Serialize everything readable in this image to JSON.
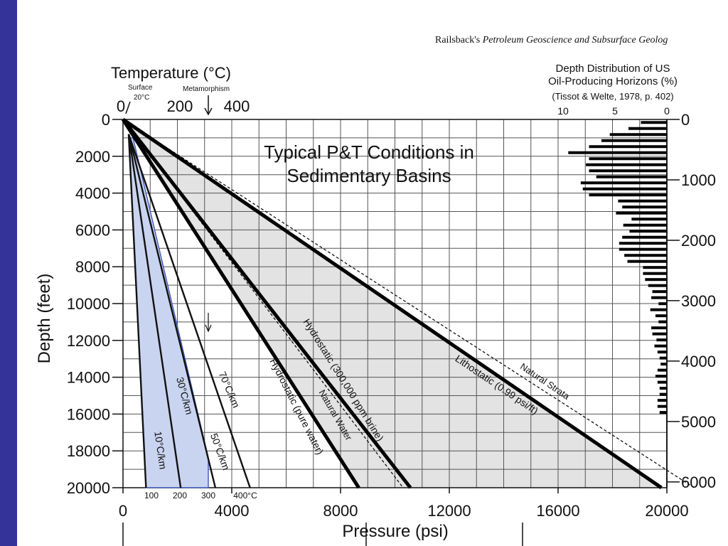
{
  "slide": {
    "sidebar_color": "#33339a",
    "credit_prefix": "Railsback's ",
    "credit_title": "Petroleum Geoscience and Subsurface Geolog"
  },
  "chart_data": {
    "type": "line",
    "title_lines": [
      "Typical P&T Conditions in",
      "Sedimentary Basins"
    ],
    "xlabel": "Pressure (psi)",
    "ylabel": "Depth (feet)",
    "xlim": [
      0,
      20000
    ],
    "ylim": [
      0,
      20000
    ],
    "y_inverted": true,
    "grid": true,
    "x_ticks": [
      0,
      4000,
      8000,
      12000,
      16000,
      20000
    ],
    "x_tick_labels": [
      "0",
      "4000",
      "8000",
      "12000",
      "16000",
      "20000"
    ],
    "y_ticks": [
      0,
      2000,
      4000,
      6000,
      8000,
      10000,
      12000,
      14000,
      16000,
      18000,
      20000
    ],
    "y_tick_labels": [
      "0",
      "2000",
      "4000",
      "6000",
      "8000",
      "10000",
      "12000",
      "14000",
      "16000",
      "18000",
      "20000"
    ],
    "temperature_axis": {
      "label": "Temperature (°C)",
      "tick_values": [
        0,
        200,
        400
      ],
      "tick_labels": [
        "0",
        "200",
        "400"
      ],
      "surface_label": "Surface",
      "surface_temp_label": "20°C",
      "surface_temp_value": 20,
      "metamorphism_label": "Metamorphism",
      "metamorphism_temp_value": 300,
      "bottom_tick_values": [
        100,
        200,
        300,
        400
      ],
      "bottom_tick_labels": [
        "100",
        "200",
        "300",
        "400°C"
      ]
    },
    "pressure_series": [
      {
        "name": "Hydrostatic (pure water)",
        "points": [
          [
            0,
            0
          ],
          [
            8670,
            20000
          ]
        ],
        "style": "thick"
      },
      {
        "name": "Hydrostatic (300,000 ppm brine)",
        "points": [
          [
            0,
            0
          ],
          [
            10570,
            20000
          ]
        ],
        "style": "thick"
      },
      {
        "name": "Lithostatic (0.99 psi/ft)",
        "points": [
          [
            0,
            0
          ],
          [
            19800,
            20000
          ]
        ],
        "style": "thick"
      },
      {
        "name": "Natural Water",
        "points": [
          [
            0,
            0
          ],
          [
            10300,
            20000
          ]
        ],
        "style": "dashed"
      },
      {
        "name": "Natural Strata",
        "points": [
          [
            0,
            0
          ],
          [
            21000,
            20000
          ]
        ],
        "style": "dashed"
      }
    ],
    "pressure_labels": {
      "hydro_pure": "Hydrostatic (pure water)",
      "hydro_brine": "Hydrostatic (300,000 ppm brine)",
      "litho": "Lithostatic (0.99 psi/ft)",
      "nat_water": "Natural Water",
      "nat_strata": "Natural Strata"
    },
    "geotherms": [
      {
        "name": "10°C/km",
        "surface_temp": 20,
        "gradient_c_per_km": 10
      },
      {
        "name": "30°C/km",
        "surface_temp": 20,
        "gradient_c_per_km": 30
      },
      {
        "name": "50°C/km",
        "surface_temp": 20,
        "gradient_c_per_km": 50
      },
      {
        "name": "70°C/km",
        "surface_temp": 20,
        "gradient_c_per_km": 70
      }
    ],
    "geotherm_labels": {
      "g10": "10°C/km",
      "g30": "30°C/km",
      "g50": "50°C/km",
      "g70": "70°C/km"
    },
    "typical_range_color": "#c9d4f0",
    "envelope_color": "#e3e3e3",
    "distribution": {
      "title_lines": [
        "Depth Distribution of US",
        "Oil-Producing Horizons (%)"
      ],
      "source": "(Tissot & Welte, 1978, p. 402)",
      "x_ticks": [
        10,
        5,
        0
      ],
      "x_tick_labels": [
        "10",
        "5",
        "0"
      ],
      "depth_axis_unit": "m",
      "depth_ticks": [
        0,
        1000,
        2000,
        3000,
        4000,
        5000,
        6000
      ],
      "depth_tick_labels": [
        "0",
        "1000",
        "2000",
        "3000",
        "4000",
        "5000",
        "6000"
      ],
      "bin_size_m": 100,
      "percent_values": [
        2.5,
        3.7,
        5.5,
        6.3,
        7.5,
        9.5,
        7.5,
        7.8,
        7.5,
        6.8,
        8.3,
        8.1,
        7.5,
        4.7,
        4.3,
        4.9,
        3.4,
        4.2,
        3.6,
        4.3,
        4.6,
        4.6,
        4.1,
        3.8,
        2.3,
        2.3,
        2.1,
        1.8,
        1.4,
        1.5,
        0.8,
        1.6,
        1.1,
        0.8,
        1.5,
        1.4,
        1.0,
        1.2,
        0.9,
        0.7,
        0.6,
        0.9,
        1.1,
        0.9,
        0.7,
        0.7,
        0.9,
        0.9,
        0.7
      ]
    }
  }
}
